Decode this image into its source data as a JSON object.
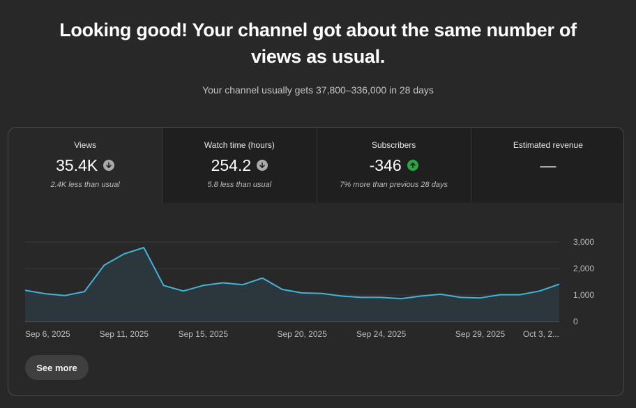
{
  "header": {
    "headline_line1": "Looking good! Your channel got about the same number of",
    "headline_line2": "views as usual.",
    "subline": "Your channel usually gets 37,800–336,000 in 28 days"
  },
  "metrics": [
    {
      "label": "Views",
      "value": "35.4K",
      "trend": "down",
      "note": "2.4K less than usual"
    },
    {
      "label": "Watch time (hours)",
      "value": "254.2",
      "trend": "down",
      "note": "5.8 less than usual"
    },
    {
      "label": "Subscribers",
      "value": "-346",
      "trend": "up",
      "note": "7% more than previous 28 days"
    },
    {
      "label": "Estimated revenue",
      "value": "—",
      "trend": "",
      "note": ""
    }
  ],
  "chart_data": {
    "type": "area",
    "x": [
      "Sep 6, 2025",
      "Sep 7, 2025",
      "Sep 8, 2025",
      "Sep 9, 2025",
      "Sep 10, 2025",
      "Sep 11, 2025",
      "Sep 12, 2025",
      "Sep 13, 2025",
      "Sep 14, 2025",
      "Sep 15, 2025",
      "Sep 16, 2025",
      "Sep 17, 2025",
      "Sep 18, 2025",
      "Sep 19, 2025",
      "Sep 20, 2025",
      "Sep 21, 2025",
      "Sep 22, 2025",
      "Sep 23, 2025",
      "Sep 24, 2025",
      "Sep 25, 2025",
      "Sep 26, 2025",
      "Sep 27, 2025",
      "Sep 28, 2025",
      "Sep 29, 2025",
      "Sep 30, 2025",
      "Oct 1, 2025",
      "Oct 2, 2025",
      "Oct 3, 2025"
    ],
    "series": [
      {
        "values": [
          1180,
          1050,
          980,
          1130,
          2130,
          2550,
          2790,
          1360,
          1150,
          1360,
          1460,
          1390,
          1640,
          1210,
          1080,
          1060,
          960,
          910,
          910,
          860,
          960,
          1030,
          910,
          890,
          1010,
          1010,
          1150,
          1410
        ]
      }
    ],
    "x_tick_labels": [
      "Sep 6, 2025",
      "Sep 11, 2025",
      "Sep 15, 2025",
      "Sep 20, 2025",
      "Sep 24, 2025",
      "Sep 29, 2025",
      "Oct 3, 2..."
    ],
    "y_ticks": [
      "0",
      "1,000",
      "2,000",
      "3,000"
    ],
    "ylim": [
      0,
      3000
    ],
    "grid": true,
    "colors": {
      "line": "#41b4d8",
      "fill": "#2b3a3f"
    }
  },
  "actions": {
    "see_more": "See more"
  }
}
